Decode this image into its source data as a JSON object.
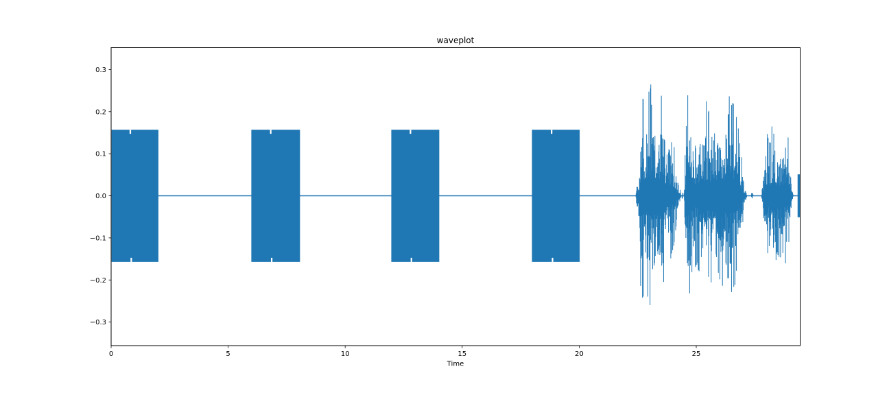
{
  "figure": {
    "title": "waveplot"
  },
  "chart_data": {
    "type": "line",
    "subtype": "audio-waveform",
    "title": "waveplot",
    "xlabel": "Time",
    "ylabel": "",
    "x_ticks": [
      0,
      5,
      10,
      15,
      20,
      25
    ],
    "x_tick_labels": [
      "0",
      "5",
      "10",
      "15",
      "20",
      "25"
    ],
    "y_ticks": [
      0.3,
      0.2,
      0.1,
      0.0,
      -0.1,
      -0.2,
      -0.3
    ],
    "y_tick_labels": [
      "0.3",
      "0.2",
      "0.1",
      "0.0",
      "−0.1",
      "−0.2",
      "−0.3"
    ],
    "xlim": [
      0,
      29.44
    ],
    "ylim": [
      -0.356,
      0.352
    ],
    "grid": false,
    "legend": null,
    "line_color": "#1f77b4",
    "background_color": "#ffffff",
    "baseline_value": 0.0,
    "tone_bursts": [
      {
        "start": 0.02,
        "end": 2.02,
        "amplitude": 0.157,
        "notch_at": 0.82
      },
      {
        "start": 5.99,
        "end": 8.07,
        "amplitude": 0.157,
        "notch_at": 6.82
      },
      {
        "start": 11.97,
        "end": 14.02,
        "amplitude": 0.157,
        "notch_at": 12.79
      },
      {
        "start": 17.98,
        "end": 20.02,
        "amplitude": 0.157,
        "notch_at": 18.82
      },
      {
        "start": 29.33,
        "end": 29.46,
        "amplitude": 0.051,
        "notch_at": null
      }
    ],
    "speech_envelope": [
      [
        22.3,
        0.0
      ],
      [
        22.42,
        0.0
      ],
      [
        22.46,
        0.04
      ],
      [
        22.52,
        0.03
      ],
      [
        22.58,
        0.09
      ],
      [
        22.64,
        0.27
      ],
      [
        22.74,
        0.25
      ],
      [
        22.84,
        0.23
      ],
      [
        22.94,
        0.27
      ],
      [
        23.02,
        0.26
      ],
      [
        23.08,
        0.322
      ],
      [
        23.16,
        0.27
      ],
      [
        23.26,
        0.25
      ],
      [
        23.36,
        0.295
      ],
      [
        23.46,
        0.25
      ],
      [
        23.56,
        0.27
      ],
      [
        23.64,
        0.19
      ],
      [
        23.74,
        0.16
      ],
      [
        23.86,
        0.16
      ],
      [
        23.96,
        0.14
      ],
      [
        24.06,
        0.12
      ],
      [
        24.16,
        0.06
      ],
      [
        24.26,
        0.035
      ],
      [
        24.33,
        0.01
      ],
      [
        24.37,
        0.0
      ],
      [
        24.4,
        0.02
      ],
      [
        24.43,
        0.0
      ],
      [
        24.47,
        0.0
      ],
      [
        24.52,
        0.1
      ],
      [
        24.6,
        0.22
      ],
      [
        24.68,
        0.29
      ],
      [
        24.78,
        0.21
      ],
      [
        24.88,
        0.17
      ],
      [
        25.0,
        0.17
      ],
      [
        25.1,
        0.19
      ],
      [
        25.2,
        0.22
      ],
      [
        25.32,
        0.2
      ],
      [
        25.42,
        0.24
      ],
      [
        25.52,
        0.21
      ],
      [
        25.62,
        0.2
      ],
      [
        25.72,
        0.25
      ],
      [
        25.82,
        0.22
      ],
      [
        25.92,
        0.25
      ],
      [
        25.99,
        0.31
      ],
      [
        26.06,
        0.24
      ],
      [
        26.16,
        0.22
      ],
      [
        26.26,
        0.24
      ],
      [
        26.34,
        0.3
      ],
      [
        26.44,
        0.25
      ],
      [
        26.54,
        0.24
      ],
      [
        26.64,
        0.22
      ],
      [
        26.74,
        0.19
      ],
      [
        26.84,
        0.15
      ],
      [
        26.94,
        0.1
      ],
      [
        27.04,
        0.04
      ],
      [
        27.12,
        0.01
      ],
      [
        27.18,
        0.0
      ],
      [
        27.34,
        0.0
      ],
      [
        27.38,
        0.018
      ],
      [
        27.44,
        0.0
      ],
      [
        27.78,
        0.0
      ],
      [
        27.86,
        0.06
      ],
      [
        27.94,
        0.13
      ],
      [
        28.04,
        0.15
      ],
      [
        28.14,
        0.13
      ],
      [
        28.24,
        0.17
      ],
      [
        28.31,
        0.225
      ],
      [
        28.4,
        0.16
      ],
      [
        28.5,
        0.14
      ],
      [
        28.6,
        0.16
      ],
      [
        28.7,
        0.15
      ],
      [
        28.8,
        0.16
      ],
      [
        28.88,
        0.19
      ],
      [
        28.96,
        0.12
      ],
      [
        29.04,
        0.07
      ],
      [
        29.1,
        0.025
      ],
      [
        29.16,
        0.0
      ]
    ]
  }
}
